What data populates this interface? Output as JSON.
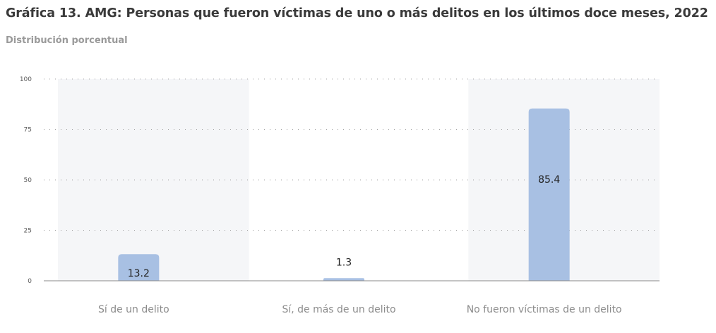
{
  "title": "Gráfica 13. AMG: Personas que fueron víctimas de uno o más delitos en los últimos doce meses, 2022",
  "subtitle": "Distribución porcentual",
  "colors": {
    "bar": "#a8c0e3",
    "grid": "#a6a6a6",
    "axis_text": "#5a5a5a",
    "category_text": "#8c8c8c",
    "band": "#f5f6f8"
  },
  "chart_data": {
    "type": "bar",
    "title": "Gráfica 13. AMG: Personas que fueron víctimas de uno o más delitos en los últimos doce meses, 2022",
    "subtitle": "Distribución porcentual",
    "categories": [
      "Sí de un delito",
      "Sí, de más de un delito",
      "No fueron víctimas de un delito"
    ],
    "values": [
      13.2,
      1.3,
      85.4
    ],
    "value_labels": [
      "13.2",
      "1.3",
      "85.4"
    ],
    "xlabel": "",
    "ylabel": "",
    "ylim": [
      0,
      100
    ],
    "yticks": [
      0,
      25,
      50,
      75,
      100
    ],
    "grid": true,
    "legend": "none"
  }
}
